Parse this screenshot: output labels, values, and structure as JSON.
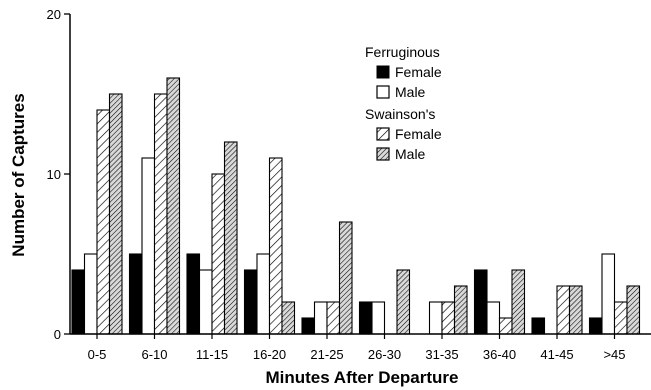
{
  "chart_data": {
    "type": "bar",
    "title": "",
    "xlabel": "Minutes After Departure",
    "ylabel": "Number of Captures",
    "ylim": [
      0,
      20
    ],
    "yticks": [
      0,
      10,
      20
    ],
    "grid": false,
    "legend_position": "top-right",
    "categories": [
      "0-5",
      "6-10",
      "11-15",
      "16-20",
      "21-25",
      "26-30",
      "31-35",
      "36-40",
      "41-45",
      ">45"
    ],
    "legend": {
      "groups": [
        {
          "label": "Ferruginous",
          "entries": [
            {
              "label": "Female",
              "series": 0
            },
            {
              "label": "Male",
              "series": 1
            }
          ]
        },
        {
          "label": "Swainson's",
          "entries": [
            {
              "label": "Female",
              "series": 2
            },
            {
              "label": "Male",
              "series": 3
            }
          ]
        }
      ]
    },
    "series": [
      {
        "group": "Ferruginous",
        "sex": "Female",
        "fill": "solid",
        "color": "#000000",
        "values": [
          4,
          5,
          5,
          4,
          1,
          2,
          0,
          4,
          1,
          1
        ]
      },
      {
        "group": "Ferruginous",
        "sex": "Male",
        "fill": "open",
        "color": "#ffffff",
        "values": [
          5,
          11,
          4,
          5,
          2,
          2,
          2,
          2,
          0,
          5
        ]
      },
      {
        "group": "Swainson's",
        "sex": "Female",
        "fill": "sparse-hatch",
        "color": "#ffffff",
        "values": [
          14,
          15,
          10,
          11,
          2,
          0,
          2,
          1,
          3,
          2
        ]
      },
      {
        "group": "Swainson's",
        "sex": "Male",
        "fill": "dense-hatch",
        "color": "#bbbbbb",
        "values": [
          15,
          16,
          12,
          2,
          7,
          4,
          3,
          4,
          3,
          3
        ]
      }
    ]
  }
}
